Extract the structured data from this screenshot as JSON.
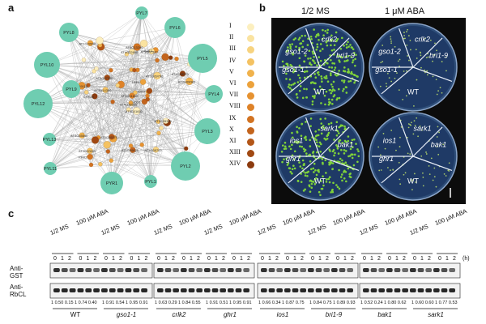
{
  "panel_a": {
    "letter": "a",
    "hubs": [
      "PYL8",
      "PYL7",
      "PYL6",
      "PYL9",
      "PYL10",
      "PYL5",
      "PYL4",
      "PYL12",
      "PYL3",
      "PYL13",
      "PYL2",
      "PYL11",
      "PYR1",
      "PYL1"
    ],
    "inner_labels": [
      "AT3G01650",
      "AT2G20000",
      "ALE2",
      "IOS1",
      "CRK28",
      "AT1G69790",
      "LRR1",
      "PRK2",
      "KIN7",
      "AT4G22800",
      "AT3G09080",
      "AT1G51810",
      "AT5G59270",
      "AT1G55300",
      "AT3G14350",
      "AT4G39110",
      "AT1G59020",
      "AT1G09970",
      "AT1G05700",
      "AT1G22090",
      "AT5G13290",
      "AT2G27300",
      "AT1G67510",
      "AT5G45840",
      "AT4G28650"
    ],
    "legend": [
      {
        "label": "I",
        "color": "#fcefbf"
      },
      {
        "label": "II",
        "color": "#fae3a0"
      },
      {
        "label": "III",
        "color": "#f7d37f"
      },
      {
        "label": "IV",
        "color": "#f4c262"
      },
      {
        "label": "V",
        "color": "#f0b24c"
      },
      {
        "label": "VI",
        "color": "#eca23c"
      },
      {
        "label": "VII",
        "color": "#e69231"
      },
      {
        "label": "VIII",
        "color": "#de8228"
      },
      {
        "label": "IX",
        "color": "#d27322"
      },
      {
        "label": "X",
        "color": "#c3641d"
      },
      {
        "label": "XI",
        "color": "#b35618"
      },
      {
        "label": "XIII",
        "color": "#a14913"
      },
      {
        "label": "XIV",
        "color": "#8c3b0f"
      }
    ],
    "hub_color": "#6fcdb1"
  },
  "panel_b": {
    "letter": "b",
    "col_headers": [
      "1/2 MS",
      "1 μM ABA"
    ],
    "top_left": [
      "gso1-2",
      "crlk2",
      "bri1-9",
      "WT",
      "gso1-1"
    ],
    "top_right": [
      "gso1-2",
      "crlk2",
      "bri1-9",
      "WT",
      "gso1-1"
    ],
    "bottom_left": [
      "ios1",
      "sark1",
      "bak1",
      "WT",
      "ghr1"
    ],
    "bottom_right": [
      "ios1",
      "sark1",
      "bak1",
      "WT",
      "ghr1"
    ]
  },
  "panel_c": {
    "letter": "c",
    "conditions": [
      "1/2 MS",
      "100 μM ABA"
    ],
    "timepoints": [
      "0",
      "1",
      "2"
    ],
    "time_unit": "(h)",
    "row_labels": [
      "Anti-\nGST",
      "Anti-\nRbCL"
    ],
    "genotypes": [
      {
        "name": "WT",
        "italic": false
      },
      {
        "name": "gso1-1",
        "italic": true
      },
      {
        "name": "crlk2",
        "italic": true
      },
      {
        "name": "ghr1",
        "italic": true
      },
      {
        "name": "ios1",
        "italic": true
      },
      {
        "name": "bri1-9",
        "italic": true
      },
      {
        "name": "bak1",
        "italic": true
      },
      {
        "name": "sark1",
        "italic": true
      }
    ],
    "quant_blocks": [
      "1 0.50 0.15 1 0.74 0.40",
      "1 0.91 0.54 1 0.95 0.91",
      "1 0.63 0.29 1 0.84 0.55",
      "1 0.91 0.51 1 0.95 0.91",
      "1 0.66 0.34 1 0.87 0.75",
      "1 0.84 0.75 1 0.89 0.93",
      "1 0.52 0.24 1 0.80 0.62",
      "1 0.60 0.60 1 0.77 0.53"
    ]
  }
}
